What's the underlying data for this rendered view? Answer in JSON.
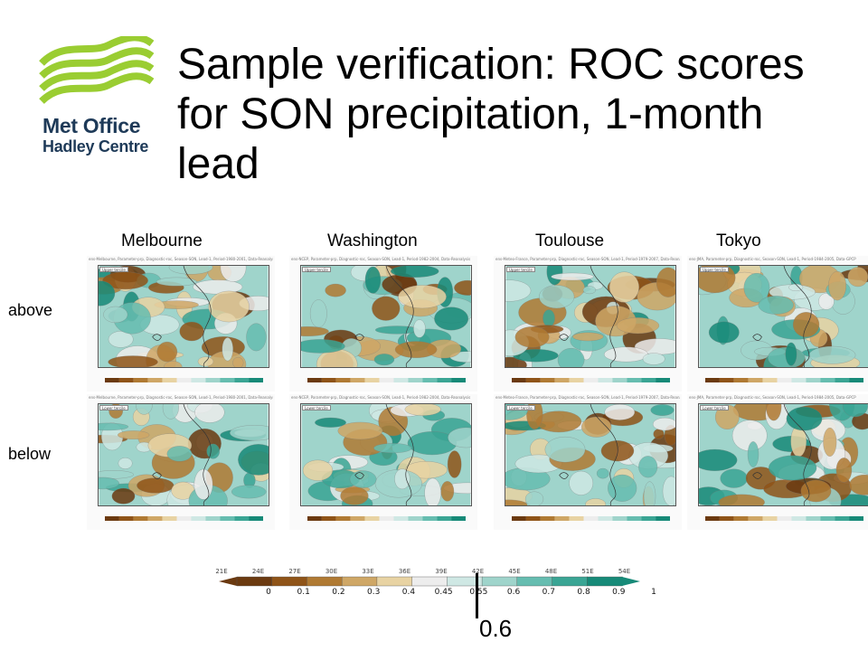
{
  "logo": {
    "line1": "Met Office",
    "line2": "Hadley Centre",
    "color_green": "#9acd32",
    "color_navy": "#1e3a58"
  },
  "title": "Sample verification: ROC scores for SON precipitation, 1-month lead",
  "columns": [
    "Melbourne",
    "Washington",
    "Toulouse",
    "Tokyo"
  ],
  "rows": [
    "above",
    "below"
  ],
  "panel_headers": {
    "melbourne": "ens-Melbourne, Parameter-prp, Diagnostic-roc, Season-SON, Lead-1, Period-1980-2001, Data-Reanalysis",
    "washington": "ens-NCEP, Parameter-prp, Diagnostic-roc, Season-SON, Lead-1, Period-1982-2004, Data-Reanalysis",
    "toulouse": "ens-Meteo-France, Parameter-prp, Diagnostic-roc, Season-SON, Lead-1, Period-1979-2007, Data-Reanalysis",
    "tokyo": "ens-JMA, Parameter-prp, Diagnostic-roc, Season-SON, Lead-1, Period-1984-2005, Data-GPCP"
  },
  "panel_tags": {
    "above": "Upper tercile",
    "below": "Lower tercile"
  },
  "colorbar": {
    "top_labels": [
      "21E",
      "24E",
      "27E",
      "30E",
      "33E",
      "36E",
      "39E",
      "42E",
      "45E",
      "48E",
      "51E",
      "54E"
    ],
    "bottom_labels": [
      "0",
      "0.1",
      "0.2",
      "0.3",
      "0.4",
      "0.45",
      "0.55",
      "0.6",
      "0.7",
      "0.8",
      "0.9",
      "1"
    ],
    "colors": [
      "#6b3a10",
      "#8f5418",
      "#b07a33",
      "#cfa766",
      "#e8d3a3",
      "#ededed",
      "#cfe8e4",
      "#9fd4cb",
      "#66bdb0",
      "#3aa594",
      "#178a78"
    ]
  },
  "marker_label": "0.6"
}
